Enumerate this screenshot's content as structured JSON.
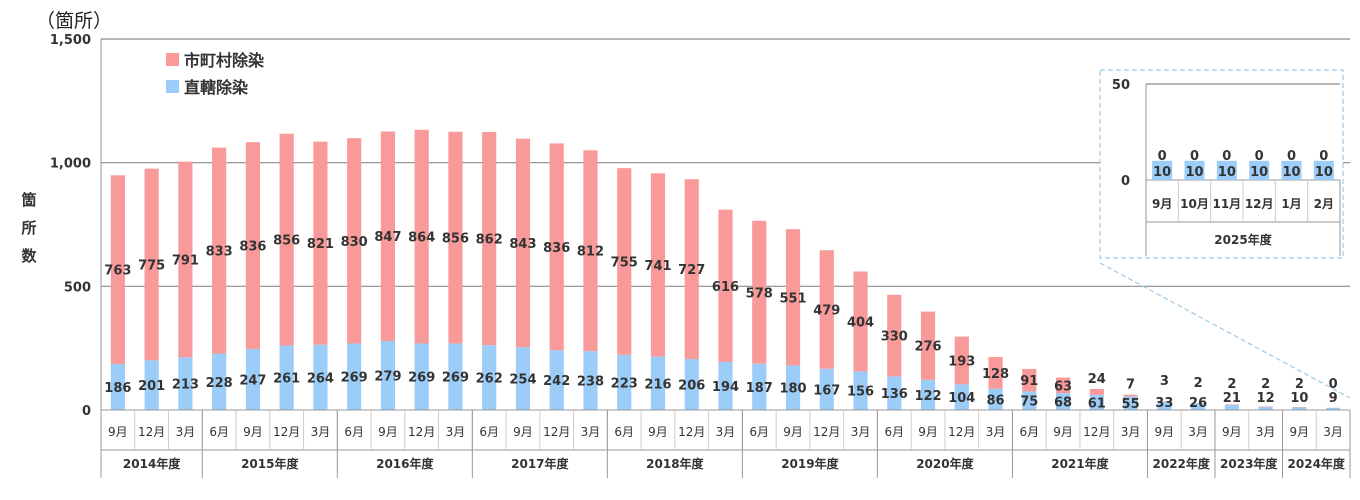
{
  "chart_data": {
    "type": "bar",
    "stacked": true,
    "unit_label": "（箇所）",
    "ylabel": "箇所数",
    "ylim": [
      0,
      1500
    ],
    "yticks": [
      "0",
      "500",
      "1,000",
      "1,500"
    ],
    "gridlines": [
      500,
      1000
    ],
    "legend": {
      "position": "top-left",
      "entries": [
        "市町村除染",
        "直轄除染"
      ]
    },
    "colors": {
      "municipal": "#f99a9a",
      "direct": "#9ccdf8",
      "axis": "#999999",
      "grid": "#8c8c8c",
      "inset_border": "#9ccbe8"
    },
    "categories": [
      "9月",
      "12月",
      "3月",
      "6月",
      "9月",
      "12月",
      "3月",
      "6月",
      "9月",
      "12月",
      "3月",
      "6月",
      "9月",
      "12月",
      "3月",
      "6月",
      "9月",
      "12月",
      "3月",
      "6月",
      "9月",
      "12月",
      "3月",
      "6月",
      "9月",
      "12月",
      "3月",
      "6月",
      "9月",
      "12月",
      "3月",
      "9月",
      "3月",
      "9月",
      "3月",
      "9月",
      "3月"
    ],
    "fiscal_years": [
      {
        "label": "2014年度",
        "count": 3
      },
      {
        "label": "2015年度",
        "count": 4
      },
      {
        "label": "2016年度",
        "count": 4
      },
      {
        "label": "2017年度",
        "count": 4
      },
      {
        "label": "2018年度",
        "count": 4
      },
      {
        "label": "2019年度",
        "count": 4
      },
      {
        "label": "2020年度",
        "count": 4
      },
      {
        "label": "2021年度",
        "count": 4
      },
      {
        "label": "2022年度",
        "count": 2
      },
      {
        "label": "2023年度",
        "count": 2
      },
      {
        "label": "2024年度",
        "count": 2
      }
    ],
    "series": [
      {
        "name": "直轄除染",
        "key": "direct",
        "values": [
          186,
          201,
          213,
          228,
          247,
          261,
          264,
          269,
          279,
          269,
          269,
          262,
          254,
          242,
          238,
          223,
          216,
          206,
          194,
          187,
          180,
          167,
          156,
          136,
          122,
          104,
          86,
          75,
          68,
          61,
          55,
          33,
          26,
          21,
          12,
          10,
          9
        ],
        "labels": [
          "186",
          "201",
          "213",
          "228",
          "247",
          "261",
          "264",
          "269",
          "279",
          "269",
          "269",
          "262",
          "254",
          "242",
          "238",
          "223",
          "216",
          "206",
          "194",
          "187",
          "180",
          "167",
          "156",
          "136",
          "122",
          "104",
          "86",
          "75",
          "68",
          "61",
          "55",
          "33",
          "26",
          "21",
          "12",
          "10",
          "9"
        ]
      },
      {
        "name": "市町村除染",
        "key": "municipal",
        "values": [
          763,
          775,
          791,
          833,
          836,
          856,
          821,
          830,
          847,
          864,
          856,
          862,
          843,
          836,
          812,
          755,
          741,
          727,
          616,
          578,
          551,
          479,
          404,
          330,
          276,
          193,
          128,
          91,
          63,
          24,
          7,
          3,
          2,
          2,
          2,
          2,
          0
        ],
        "labels": [
          "763",
          "775",
          "791",
          "833",
          "836",
          "856",
          "821",
          "830",
          "847",
          "864",
          "856",
          "862",
          "843",
          "836",
          "812",
          "755",
          "741",
          "727",
          "616",
          "578",
          "551",
          "479",
          "404",
          "330",
          "276",
          "193",
          "128",
          "91",
          "63",
          "24",
          "7",
          "3",
          "2",
          "2",
          "2",
          "2",
          "0"
        ]
      }
    ],
    "inset": {
      "ylim": [
        0,
        50
      ],
      "yticks": [
        "0",
        "50"
      ],
      "categories": [
        "9月",
        "10月",
        "11月",
        "12月",
        "1月",
        "2月"
      ],
      "fiscal_year": "2025年度",
      "direct": [
        10,
        10,
        10,
        10,
        10,
        10
      ],
      "municipal": [
        0,
        0,
        0,
        0,
        0,
        0
      ],
      "direct_labels": [
        "10",
        "10",
        "10",
        "10",
        "10",
        "10"
      ],
      "municipal_labels": [
        "0",
        "0",
        "0",
        "0",
        "0",
        "0"
      ]
    }
  }
}
